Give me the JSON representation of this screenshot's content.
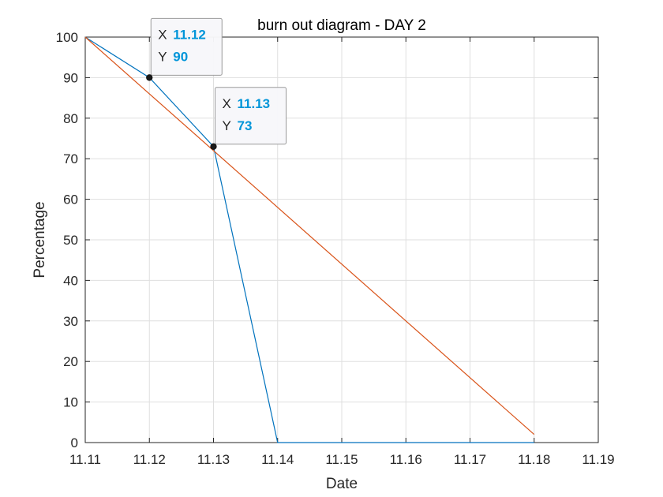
{
  "chart_data": {
    "type": "line",
    "title": "burn out diagram - DAY 2",
    "xlabel": "Date",
    "ylabel": "Percentage",
    "xlim": [
      11.11,
      11.19
    ],
    "ylim": [
      0,
      100
    ],
    "x_ticks": [
      11.11,
      11.12,
      11.13,
      11.14,
      11.15,
      11.16,
      11.17,
      11.18,
      11.19
    ],
    "x_tick_labels": [
      "11.11",
      "11.12",
      "11.13",
      "11.14",
      "11.15",
      "11.16",
      "11.17",
      "11.18",
      "11.19"
    ],
    "y_ticks": [
      0,
      10,
      20,
      30,
      40,
      50,
      60,
      70,
      80,
      90,
      100
    ],
    "y_tick_labels": [
      "0",
      "10",
      "20",
      "30",
      "40",
      "50",
      "60",
      "70",
      "80",
      "90",
      "100"
    ],
    "grid": true,
    "series": [
      {
        "color": "#0072BD",
        "x": [
          11.11,
          11.12,
          11.13,
          11.14,
          11.18
        ],
        "y": [
          100,
          90,
          73,
          0,
          0
        ]
      },
      {
        "color": "#D95319",
        "x": [
          11.11,
          11.18
        ],
        "y": [
          100,
          2
        ]
      }
    ],
    "datatips": [
      {
        "x": 11.12,
        "y": 90,
        "x_key": "X",
        "y_key": "Y",
        "x_text": "11.12",
        "y_text": "90"
      },
      {
        "x": 11.13,
        "y": 73,
        "x_key": "X",
        "y_key": "Y",
        "x_text": "11.13",
        "y_text": "73"
      }
    ],
    "datatip_value_color": "#0095D9"
  }
}
